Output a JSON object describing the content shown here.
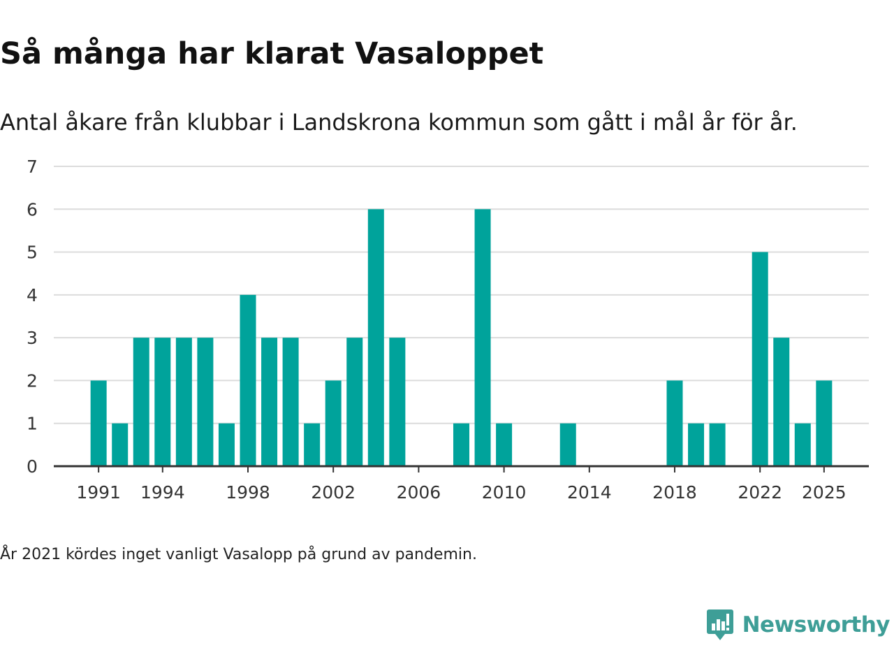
{
  "header": {
    "title": "Så många har klarat Vasaloppet",
    "subtitle": "Antal åkare från klubbar i Landskrona kommun som gått i mål år för år."
  },
  "footer": {
    "note": "År 2021 kördes inget vanligt Vasalopp på grund av pandemin.",
    "brand": "Newsworthy",
    "brand_icon": "newsworthy-logo-icon"
  },
  "colors": {
    "bar": "#00a39b",
    "grid": "#dcdcdc",
    "axis": "#333333",
    "brand": "#3e9e97"
  },
  "chart_data": {
    "type": "bar",
    "title": "Så många har klarat Vasaloppet",
    "subtitle": "Antal åkare från klubbar i Landskrona kommun som gått i mål år för år.",
    "xlabel": "",
    "ylabel": "",
    "ylim": [
      0,
      7
    ],
    "yticks": [
      0,
      1,
      2,
      3,
      4,
      5,
      6,
      7
    ],
    "xlim": [
      1988.9,
      2027.1
    ],
    "xticks": [
      1991,
      1994,
      1998,
      2002,
      2006,
      2010,
      2014,
      2018,
      2022,
      2025
    ],
    "grid": true,
    "x": [
      1991,
      1992,
      1993,
      1994,
      1995,
      1996,
      1997,
      1998,
      1999,
      2000,
      2001,
      2002,
      2003,
      2004,
      2005,
      2006,
      2007,
      2008,
      2009,
      2010,
      2011,
      2012,
      2013,
      2014,
      2015,
      2016,
      2017,
      2018,
      2019,
      2020,
      2021,
      2022,
      2023,
      2024,
      2025
    ],
    "values": [
      2,
      1,
      3,
      3,
      3,
      3,
      1,
      4,
      3,
      3,
      1,
      2,
      3,
      6,
      3,
      0,
      0,
      1,
      6,
      1,
      0,
      0,
      1,
      0,
      0,
      0,
      0,
      2,
      1,
      1,
      0,
      5,
      3,
      1,
      2
    ]
  }
}
